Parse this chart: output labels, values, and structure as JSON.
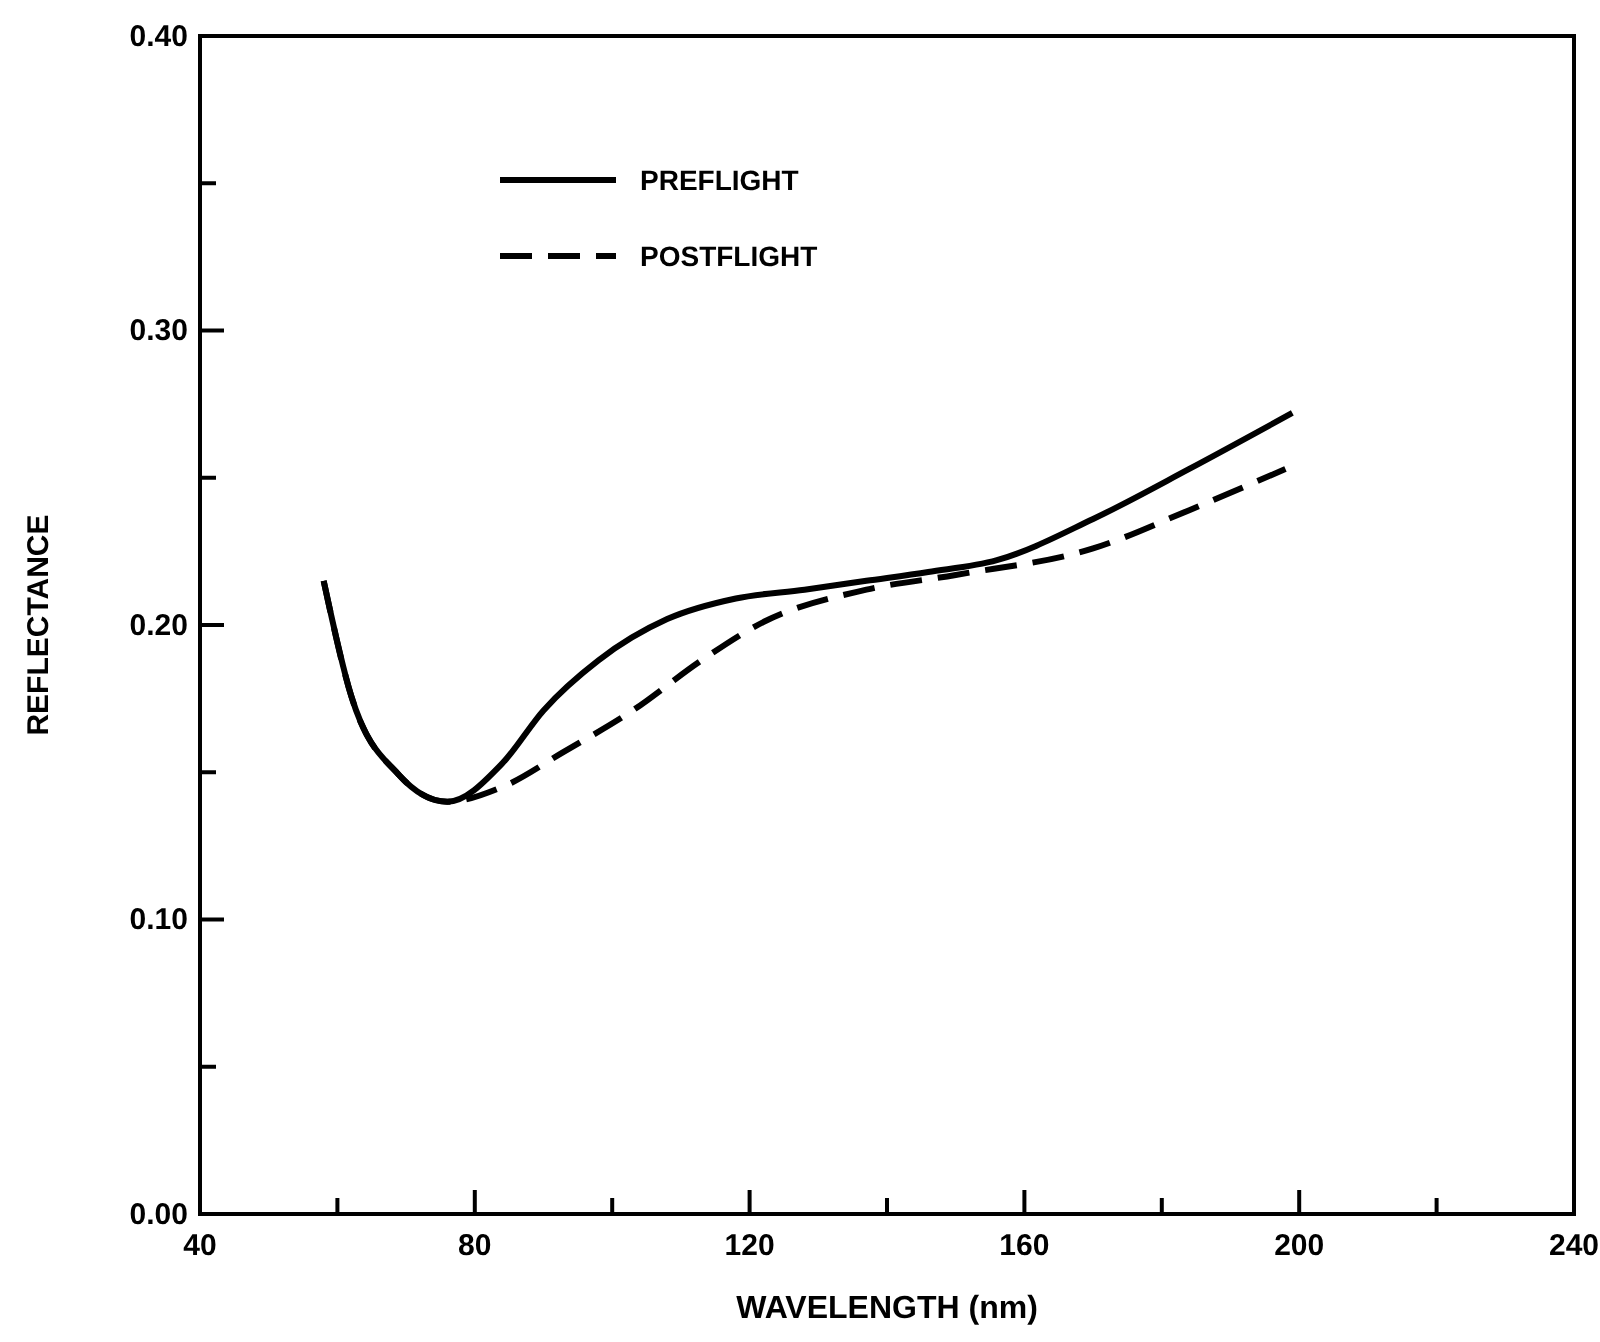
{
  "chart_data": {
    "type": "line",
    "xlabel": "WAVELENGTH (nm)",
    "ylabel": "REFLECTANCE",
    "xlim": [
      40,
      240
    ],
    "ylim": [
      0,
      0.4
    ],
    "xticks": [
      40,
      {
        "value": 60,
        "label": null
      },
      80,
      {
        "value": 100,
        "label": null
      },
      120,
      {
        "value": 140,
        "label": null
      },
      160,
      {
        "value": 180,
        "label": null
      },
      200,
      {
        "value": 220,
        "label": null
      },
      240
    ],
    "yticks": [
      {
        "value": 0,
        "label": "0.00"
      },
      {
        "value": 0.05,
        "label": null
      },
      {
        "value": 0.1,
        "label": "0.10"
      },
      {
        "value": 0.15,
        "label": null
      },
      {
        "value": 0.2,
        "label": "0.20"
      },
      {
        "value": 0.25,
        "label": null
      },
      {
        "value": 0.3,
        "label": "0.30"
      },
      {
        "value": 0.35,
        "label": null
      },
      {
        "value": 0.4,
        "label": "0.40"
      }
    ],
    "legend": "top left",
    "marker": "none",
    "series": [
      {
        "name": "PREFLIGHT",
        "color": "#000000",
        "line_style": "solid",
        "x": [
          58,
          62,
          69,
          76,
          84,
          90,
          98,
          108,
          118,
          128,
          137,
          146,
          156,
          170,
          184,
          199
        ],
        "values": [
          0.215,
          0.176,
          0.149,
          0.14,
          0.153,
          0.171,
          0.188,
          0.202,
          0.209,
          0.212,
          0.215,
          0.218,
          0.222,
          0.236,
          0.253,
          0.272
        ]
      },
      {
        "name": "POSTFLIGHT",
        "color": "#000000",
        "line_style": "dashed",
        "x": [
          58,
          62,
          69,
          76,
          84,
          93,
          103,
          113,
          122,
          137,
          150,
          170,
          184,
          198
        ],
        "values": [
          0.215,
          0.176,
          0.149,
          0.14,
          0.145,
          0.157,
          0.171,
          0.188,
          0.201,
          0.212,
          0.217,
          0.226,
          0.239,
          0.253
        ]
      }
    ]
  }
}
